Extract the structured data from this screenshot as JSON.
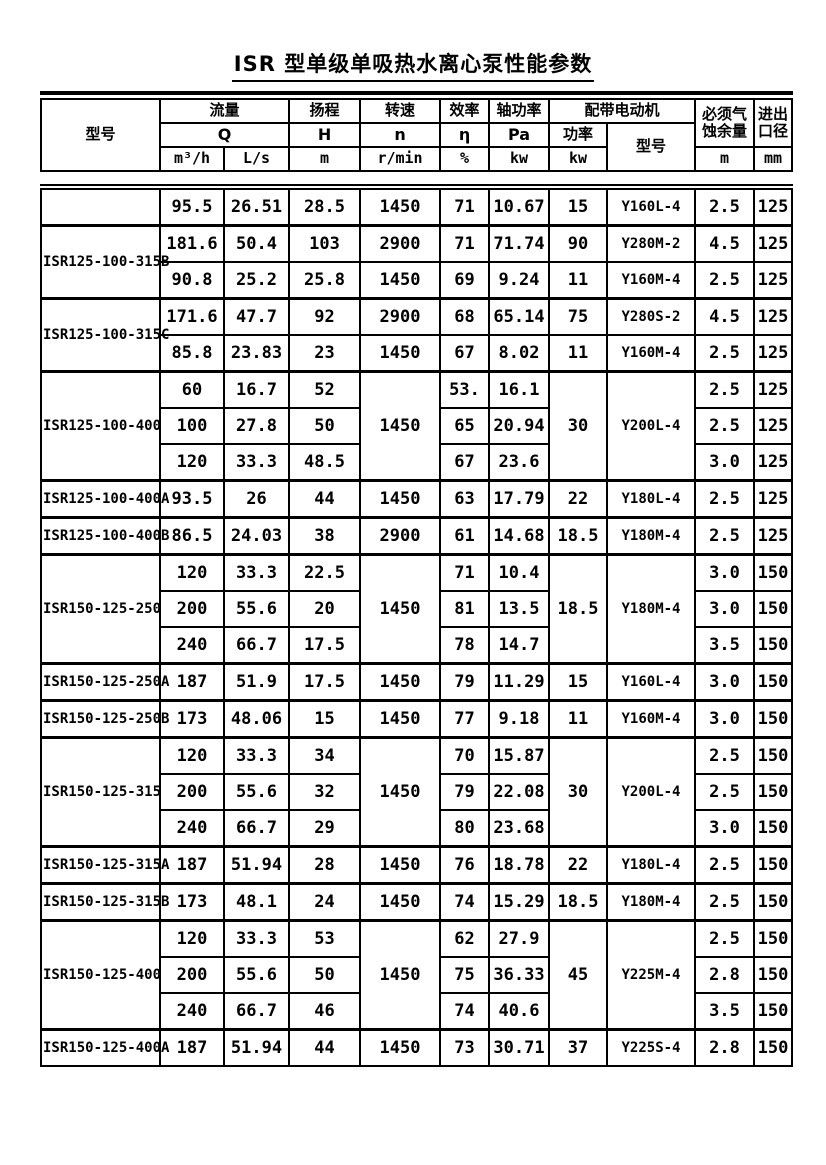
{
  "title": "ISR 型单级单吸热水离心泵性能参数",
  "header": {
    "model": "型号",
    "flow": "流量",
    "flow_symbol": "Q",
    "unit_m3h": "m³/h",
    "unit_ls": "L/s",
    "head": "扬程",
    "head_symbol": "H",
    "unit_m": "m",
    "speed": "转速",
    "speed_symbol": "n",
    "unit_rmin": "r/min",
    "eff": "效率",
    "eff_symbol": "η",
    "unit_pct": "%",
    "shaft": "轴功率",
    "shaft_symbol": "Pa",
    "unit_kw": "kw",
    "motor": "配带电动机",
    "motor_power": "功率",
    "unit_kw2": "kw",
    "motor_model": "型号",
    "npsh_line1": "必须气",
    "npsh_line2": "蚀余量",
    "unit_npsh_m": "m",
    "dia_line1": "进出",
    "dia_line2": "口径",
    "unit_mm": "mm"
  },
  "groups": [
    {
      "model": "",
      "rows": [
        {
          "q": "95.5",
          "ls": "26.51",
          "h": "28.5",
          "n": "1450",
          "eta": "71",
          "pa": "10.67",
          "kw": "15",
          "motor": "Y160L-4",
          "npsh": "2.5",
          "dia": "125"
        }
      ]
    },
    {
      "model": "ISR125-100-315B",
      "rows": [
        {
          "q": "181.6",
          "ls": "50.4",
          "h": "103",
          "n": "2900",
          "eta": "71",
          "pa": "71.74",
          "kw": "90",
          "motor": "Y280M-2",
          "npsh": "4.5",
          "dia": "125"
        },
        {
          "q": "90.8",
          "ls": "25.2",
          "h": "25.8",
          "n": "1450",
          "eta": "69",
          "pa": "9.24",
          "kw": "11",
          "motor": "Y160M-4",
          "npsh": "2.5",
          "dia": "125"
        }
      ]
    },
    {
      "model": "ISR125-100-315C",
      "rows": [
        {
          "q": "171.6",
          "ls": "47.7",
          "h": "92",
          "n": "2900",
          "eta": "68",
          "pa": "65.14",
          "kw": "75",
          "motor": "Y280S-2",
          "npsh": "4.5",
          "dia": "125"
        },
        {
          "q": "85.8",
          "ls": "23.83",
          "h": "23",
          "n": "1450",
          "eta": "67",
          "pa": "8.02",
          "kw": "11",
          "motor": "Y160M-4",
          "npsh": "2.5",
          "dia": "125"
        }
      ]
    },
    {
      "model": "ISR125-100-400",
      "shared": {
        "n": "1450",
        "kw": "30",
        "motor": "Y200L-4"
      },
      "rows": [
        {
          "q": "60",
          "ls": "16.7",
          "h": "52",
          "eta": "53.",
          "pa": "16.1",
          "npsh": "2.5",
          "dia": "125"
        },
        {
          "q": "100",
          "ls": "27.8",
          "h": "50",
          "eta": "65",
          "pa": "20.94",
          "npsh": "2.5",
          "dia": "125"
        },
        {
          "q": "120",
          "ls": "33.3",
          "h": "48.5",
          "eta": "67",
          "pa": "23.6",
          "npsh": "3.0",
          "dia": "125"
        }
      ]
    },
    {
      "model": "ISR125-100-400A",
      "rows": [
        {
          "q": "93.5",
          "ls": "26",
          "h": "44",
          "n": "1450",
          "eta": "63",
          "pa": "17.79",
          "kw": "22",
          "motor": "Y180L-4",
          "npsh": "2.5",
          "dia": "125"
        }
      ]
    },
    {
      "model": "ISR125-100-400B",
      "rows": [
        {
          "q": "86.5",
          "ls": "24.03",
          "h": "38",
          "n": "2900",
          "eta": "61",
          "pa": "14.68",
          "kw": "18.5",
          "motor": "Y180M-4",
          "npsh": "2.5",
          "dia": "125"
        }
      ]
    },
    {
      "model": "ISR150-125-250",
      "shared": {
        "n": "1450",
        "kw": "18.5",
        "motor": "Y180M-4"
      },
      "rows": [
        {
          "q": "120",
          "ls": "33.3",
          "h": "22.5",
          "eta": "71",
          "pa": "10.4",
          "npsh": "3.0",
          "dia": "150"
        },
        {
          "q": "200",
          "ls": "55.6",
          "h": "20",
          "eta": "81",
          "pa": "13.5",
          "npsh": "3.0",
          "dia": "150"
        },
        {
          "q": "240",
          "ls": "66.7",
          "h": "17.5",
          "eta": "78",
          "pa": "14.7",
          "npsh": "3.5",
          "dia": "150"
        }
      ]
    },
    {
      "model": "ISR150-125-250A",
      "rows": [
        {
          "q": "187",
          "ls": "51.9",
          "h": "17.5",
          "n": "1450",
          "eta": "79",
          "pa": "11.29",
          "kw": "15",
          "motor": "Y160L-4",
          "npsh": "3.0",
          "dia": "150"
        }
      ]
    },
    {
      "model": "ISR150-125-250B",
      "rows": [
        {
          "q": "173",
          "ls": "48.06",
          "h": "15",
          "n": "1450",
          "eta": "77",
          "pa": "9.18",
          "kw": "11",
          "motor": "Y160M-4",
          "npsh": "3.0",
          "dia": "150"
        }
      ]
    },
    {
      "model": "ISR150-125-315",
      "shared": {
        "n": "1450",
        "kw": "30",
        "motor": "Y200L-4"
      },
      "rows": [
        {
          "q": "120",
          "ls": "33.3",
          "h": "34",
          "eta": "70",
          "pa": "15.87",
          "npsh": "2.5",
          "dia": "150"
        },
        {
          "q": "200",
          "ls": "55.6",
          "h": "32",
          "eta": "79",
          "pa": "22.08",
          "npsh": "2.5",
          "dia": "150"
        },
        {
          "q": "240",
          "ls": "66.7",
          "h": "29",
          "eta": "80",
          "pa": "23.68",
          "npsh": "3.0",
          "dia": "150"
        }
      ]
    },
    {
      "model": "ISR150-125-315A",
      "rows": [
        {
          "q": "187",
          "ls": "51.94",
          "h": "28",
          "n": "1450",
          "eta": "76",
          "pa": "18.78",
          "kw": "22",
          "motor": "Y180L-4",
          "npsh": "2.5",
          "dia": "150"
        }
      ]
    },
    {
      "model": "ISR150-125-315B",
      "rows": [
        {
          "q": "173",
          "ls": "48.1",
          "h": "24",
          "n": "1450",
          "eta": "74",
          "pa": "15.29",
          "kw": "18.5",
          "motor": "Y180M-4",
          "npsh": "2.5",
          "dia": "150"
        }
      ]
    },
    {
      "model": "ISR150-125-400",
      "shared": {
        "n": "1450",
        "kw": "45",
        "motor": "Y225M-4"
      },
      "rows": [
        {
          "q": "120",
          "ls": "33.3",
          "h": "53",
          "eta": "62",
          "pa": "27.9",
          "npsh": "2.5",
          "dia": "150"
        },
        {
          "q": "200",
          "ls": "55.6",
          "h": "50",
          "eta": "75",
          "pa": "36.33",
          "npsh": "2.8",
          "dia": "150"
        },
        {
          "q": "240",
          "ls": "66.7",
          "h": "46",
          "eta": "74",
          "pa": "40.6",
          "npsh": "3.5",
          "dia": "150"
        }
      ]
    },
    {
      "model": "ISR150-125-400A",
      "rows": [
        {
          "q": "187",
          "ls": "51.94",
          "h": "44",
          "n": "1450",
          "eta": "73",
          "pa": "30.71",
          "kw": "37",
          "motor": "Y225S-4",
          "npsh": "2.8",
          "dia": "150"
        }
      ]
    }
  ]
}
